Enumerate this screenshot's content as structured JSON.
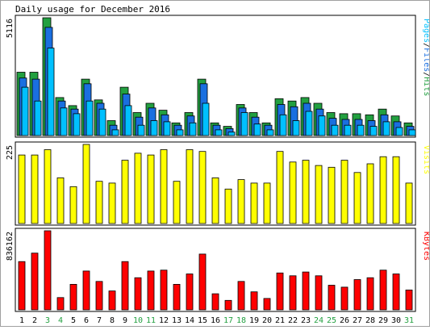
{
  "title": "Daily usage for December 2016",
  "colors": {
    "hits": "#22a040",
    "files": "#1a6fe0",
    "pages": "#00c0ff",
    "visits": "#ffff00",
    "kbytes": "#ff0000",
    "weekend_label": "#22a040",
    "weekday_label": "#000000"
  },
  "chart_data": [
    {
      "type": "bar",
      "panel": "hits",
      "ymax_label": "5116",
      "right_label_parts": [
        {
          "text": "Pages",
          "color": "#00c0ff"
        },
        {
          "text": "/",
          "color": "#000000"
        },
        {
          "text": "Files",
          "color": "#1a6fe0"
        },
        {
          "text": "/",
          "color": "#000000"
        },
        {
          "text": "Hits",
          "color": "#22a040"
        }
      ],
      "categories": [
        "1",
        "2",
        "3",
        "4",
        "5",
        "6",
        "7",
        "8",
        "9",
        "10",
        "11",
        "12",
        "13",
        "14",
        "15",
        "16",
        "17",
        "18",
        "19",
        "20",
        "21",
        "22",
        "23",
        "24",
        "25",
        "26",
        "27",
        "28",
        "29",
        "30",
        "31"
      ],
      "ylim": [
        0,
        5116
      ],
      "series": [
        {
          "name": "Hits",
          "values": [
            2750,
            2750,
            5116,
            1650,
            1300,
            2450,
            1550,
            650,
            2100,
            1000,
            1400,
            1100,
            550,
            1000,
            2450,
            550,
            400,
            1350,
            1000,
            550,
            1600,
            1500,
            1650,
            1400,
            1000,
            950,
            950,
            900,
            1150,
            850,
            550
          ]
        },
        {
          "name": "Files",
          "values": [
            2500,
            2450,
            4700,
            1500,
            1150,
            2250,
            1400,
            450,
            1800,
            800,
            1200,
            900,
            450,
            850,
            2250,
            450,
            300,
            1200,
            800,
            450,
            1350,
            1250,
            1400,
            1150,
            750,
            700,
            700,
            650,
            900,
            600,
            400
          ]
        },
        {
          "name": "Pages",
          "values": [
            2100,
            1500,
            3800,
            1200,
            950,
            1500,
            1150,
            250,
            1300,
            450,
            650,
            600,
            250,
            550,
            1400,
            250,
            150,
            1000,
            500,
            250,
            900,
            650,
            1050,
            850,
            450,
            450,
            450,
            400,
            600,
            350,
            250
          ]
        }
      ]
    },
    {
      "type": "bar",
      "panel": "visits",
      "ymax_label": "225",
      "right_label_parts": [
        {
          "text": "Visits",
          "color": "#ffff00"
        }
      ],
      "categories": [
        "1",
        "2",
        "3",
        "4",
        "5",
        "6",
        "7",
        "8",
        "9",
        "10",
        "11",
        "12",
        "13",
        "14",
        "15",
        "16",
        "17",
        "18",
        "19",
        "20",
        "21",
        "22",
        "23",
        "24",
        "25",
        "26",
        "27",
        "28",
        "29",
        "30",
        "31"
      ],
      "ylim": [
        0,
        225
      ],
      "series": [
        {
          "name": "Visits",
          "values": [
            195,
            195,
            210,
            130,
            105,
            225,
            120,
            115,
            180,
            200,
            195,
            210,
            120,
            210,
            205,
            130,
            98,
            125,
            115,
            115,
            205,
            175,
            180,
            165,
            160,
            180,
            145,
            170,
            190,
            190,
            115
          ]
        }
      ]
    },
    {
      "type": "bar",
      "panel": "kbytes",
      "ymax_label": "836162",
      "right_label_parts": [
        {
          "text": "KBytes",
          "color": "#ff0000"
        }
      ],
      "categories": [
        "1",
        "2",
        "3",
        "4",
        "5",
        "6",
        "7",
        "8",
        "9",
        "10",
        "11",
        "12",
        "13",
        "14",
        "15",
        "16",
        "17",
        "18",
        "19",
        "20",
        "21",
        "22",
        "23",
        "24",
        "25",
        "26",
        "27",
        "28",
        "29",
        "30",
        "31"
      ],
      "ylim": [
        0,
        836162
      ],
      "series": [
        {
          "name": "KBytes",
          "values": [
            510000,
            600000,
            836162,
            130000,
            270000,
            410000,
            300000,
            200000,
            510000,
            340000,
            410000,
            420000,
            270000,
            380000,
            590000,
            170000,
            100000,
            300000,
            190000,
            120000,
            390000,
            360000,
            400000,
            360000,
            260000,
            240000,
            320000,
            340000,
            420000,
            380000,
            210000
          ]
        }
      ]
    }
  ],
  "weekend_days": [
    "3",
    "4",
    "10",
    "11",
    "17",
    "18",
    "24",
    "25",
    "31"
  ]
}
